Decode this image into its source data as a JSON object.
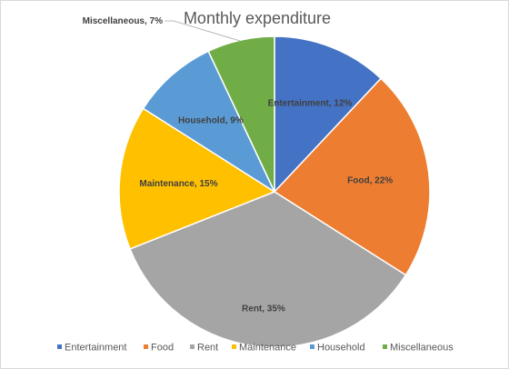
{
  "chart_data": {
    "type": "pie",
    "title": "Monthly expenditure",
    "categories": [
      "Entertainment",
      "Food",
      "Rent",
      "Maintenance",
      "Household",
      "Miscellaneous"
    ],
    "values": [
      12,
      22,
      35,
      15,
      9,
      7
    ],
    "data_labels": [
      "Entertainment, 12%",
      "Food, 22%",
      "Rent, 35%",
      "Maintenance, 15%",
      "Household, 9%",
      "Miscellaneous, 7%"
    ],
    "colors": [
      "#4472C4",
      "#ED7D31",
      "#A5A5A5",
      "#FFC000",
      "#5B9BD5",
      "#70AD47"
    ],
    "start_angle": "12 o'clock",
    "direction": "clockwise",
    "legend_position": "bottom",
    "grid": false
  }
}
